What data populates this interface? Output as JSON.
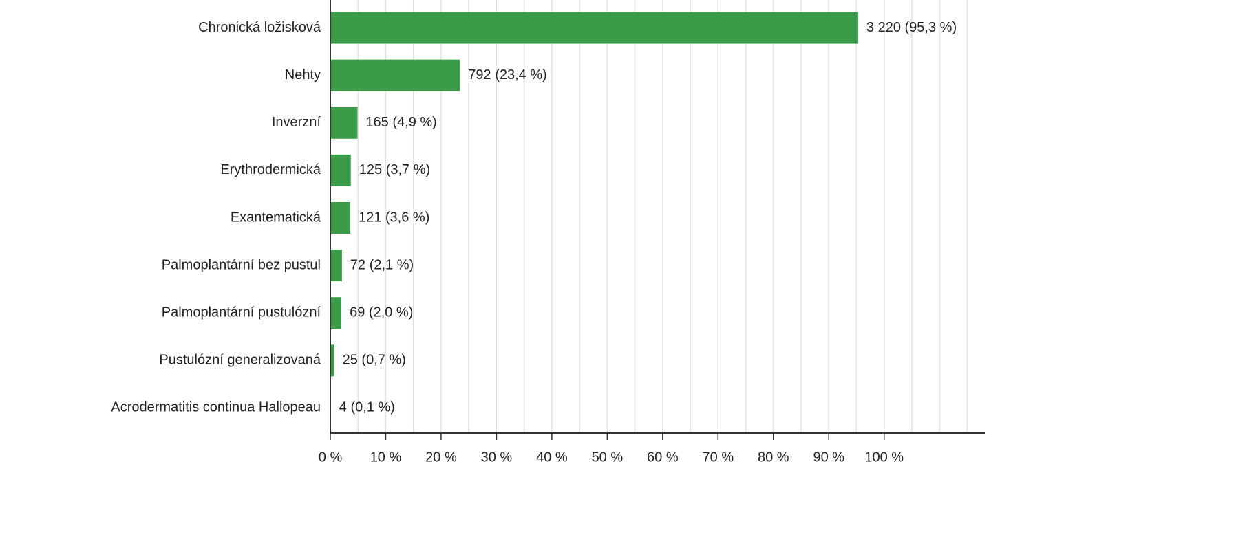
{
  "chart_data": {
    "type": "bar",
    "orientation": "horizontal",
    "categories": [
      "Chronická ložisková",
      "Nehty",
      "Inverzní",
      "Erythrodermická",
      "Exantematická",
      "Palmoplantární bez pustul",
      "Palmoplantární pustulózní",
      "Pustulózní generalizovaná",
      "Acrodermatitis continua Hallopeau"
    ],
    "values": [
      95.3,
      23.4,
      4.9,
      3.7,
      3.6,
      2.1,
      2.0,
      0.7,
      0.1
    ],
    "value_labels": [
      "3 220 (95,3 %)",
      "792 (23,4 %)",
      "165 (4,9 %)",
      "125 (3,7 %)",
      "121 (3,6 %)",
      "72 (2,1 %)",
      "69 (2,0 %)",
      "25 (0,7 %)",
      "4 (0,1 %)"
    ],
    "color": "#3a9c48",
    "xlim": [
      0,
      118.3
    ],
    "xticks": [
      {
        "value": 0,
        "label": "0 %"
      },
      {
        "value": 10,
        "label": "10 %"
      },
      {
        "value": 20,
        "label": "20 %"
      },
      {
        "value": 30,
        "label": "30 %"
      },
      {
        "value": 40,
        "label": "40 %"
      },
      {
        "value": 50,
        "label": "50 %"
      },
      {
        "value": 60,
        "label": "60 %"
      },
      {
        "value": 70,
        "label": "70 %"
      },
      {
        "value": 80,
        "label": "80 %"
      },
      {
        "value": 90,
        "label": "90 %"
      },
      {
        "value": 100,
        "label": "100 %"
      }
    ],
    "grid_x": [
      5,
      10,
      15,
      20,
      25,
      30,
      35,
      40,
      45,
      50,
      55,
      60,
      65,
      70,
      75,
      80,
      85,
      90,
      95,
      100,
      105,
      110,
      115
    ],
    "grid": true
  }
}
